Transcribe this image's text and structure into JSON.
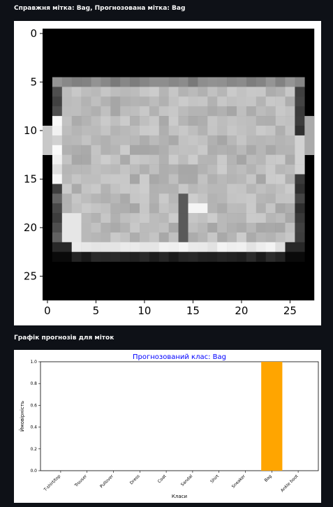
{
  "image_caption": "Справжня мітка: Bag, Прогнозована мітка: Bag",
  "chart_caption": "Графік прогнозів для міток",
  "colors": {
    "background": "#0e1117",
    "bar": "#ffa500",
    "title": "#0000ff"
  },
  "image_plot": {
    "x_ticks": [
      "0",
      "5",
      "10",
      "15",
      "20",
      "25"
    ],
    "y_ticks": [
      "0",
      "5",
      "10",
      "15",
      "20",
      "25"
    ]
  },
  "chart_data": {
    "type": "bar",
    "title": "Прогнозований клас: Bag",
    "xlabel": "Класи",
    "ylabel": "Ймовірність",
    "categories": [
      "T-shirt/top",
      "Trouser",
      "Pullover",
      "Dress",
      "Coat",
      "Sandal",
      "Shirt",
      "Sneaker",
      "Bag",
      "Ankle boot"
    ],
    "values": [
      0,
      0,
      0,
      0,
      0,
      0,
      0,
      0,
      1.0,
      0
    ],
    "ylim": [
      0,
      1.0
    ],
    "y_ticks": [
      "0.0",
      "0.2",
      "0.4",
      "0.6",
      "0.8",
      "1.0"
    ],
    "grid": false
  }
}
